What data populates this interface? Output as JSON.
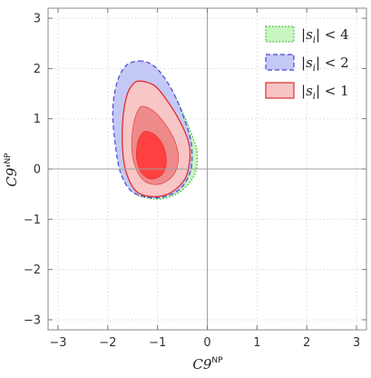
{
  "chart_data": {
    "type": "contour",
    "xlabel": "C9",
    "xlabel_sup": "NP",
    "ylabel": "C9'",
    "ylabel_sup": "NP",
    "xlim": [
      -3.2,
      3.2
    ],
    "ylim": [
      -3.2,
      3.2
    ],
    "xticks": [
      -3,
      -2,
      -1,
      0,
      1,
      2,
      3
    ],
    "yticks": [
      -3,
      -2,
      -1,
      0,
      1,
      2,
      3
    ],
    "grid": "dotted",
    "zero_lines": true,
    "legend_position": "top-right",
    "regions": [
      {
        "name": "|s_i| < 4",
        "legend_var": "s",
        "legend_sub": "i",
        "legend_rel": "< 4",
        "fill": "#c8f5c0",
        "stroke": "#3cb43c",
        "dash": "dotted",
        "outer": [
          [
            -1.35,
            2.05
          ],
          [
            -1.05,
            1.95
          ],
          [
            -0.8,
            1.7
          ],
          [
            -0.55,
            1.25
          ],
          [
            -0.28,
            0.6
          ],
          [
            -0.2,
            0.3
          ],
          [
            -0.25,
            -0.1
          ],
          [
            -0.5,
            -0.42
          ],
          [
            -0.85,
            -0.58
          ],
          [
            -1.2,
            -0.58
          ],
          [
            -1.5,
            -0.45
          ],
          [
            -1.72,
            -0.05
          ],
          [
            -1.82,
            0.5
          ],
          [
            -1.86,
            1.15
          ],
          [
            -1.78,
            1.7
          ],
          [
            -1.62,
            2.0
          ]
        ]
      },
      {
        "name": "|s_i| < 2",
        "legend_var": "s",
        "legend_sub": "i",
        "legend_rel": "< 2",
        "fill": "#c4c8f4",
        "stroke": "#4848d8",
        "dash": "dashed",
        "outer": [
          [
            -1.37,
            2.15
          ],
          [
            -1.1,
            2.07
          ],
          [
            -0.85,
            1.8
          ],
          [
            -0.6,
            1.35
          ],
          [
            -0.38,
            0.75
          ],
          [
            -0.31,
            0.4
          ],
          [
            -0.34,
            -0.05
          ],
          [
            -0.55,
            -0.4
          ],
          [
            -0.9,
            -0.56
          ],
          [
            -1.25,
            -0.55
          ],
          [
            -1.55,
            -0.42
          ],
          [
            -1.75,
            -0.05
          ],
          [
            -1.85,
            0.5
          ],
          [
            -1.9,
            1.15
          ],
          [
            -1.82,
            1.7
          ],
          [
            -1.64,
            2.05
          ]
        ]
      },
      {
        "name": "|s_i| < 1",
        "legend_var": "s",
        "legend_sub": "i",
        "legend_rel": "< 1",
        "fill": "#f6c4c4",
        "stroke": "#e03030",
        "dash": "solid",
        "bands": [
          {
            "fill": "#f8c6c6",
            "points": [
              [
                -1.35,
                1.75
              ],
              [
                -1.05,
                1.65
              ],
              [
                -0.8,
                1.35
              ],
              [
                -0.55,
                0.95
              ],
              [
                -0.38,
                0.55
              ],
              [
                -0.35,
                0.2
              ],
              [
                -0.45,
                -0.2
              ],
              [
                -0.75,
                -0.48
              ],
              [
                -1.1,
                -0.55
              ],
              [
                -1.42,
                -0.45
              ],
              [
                -1.62,
                -0.1
              ],
              [
                -1.7,
                0.35
              ],
              [
                -1.7,
                0.95
              ],
              [
                -1.62,
                1.45
              ],
              [
                -1.5,
                1.68
              ]
            ]
          },
          {
            "fill": "#ee8a8a",
            "points": [
              [
                -1.3,
                1.25
              ],
              [
                -1.08,
                1.15
              ],
              [
                -0.85,
                0.9
              ],
              [
                -0.65,
                0.55
              ],
              [
                -0.58,
                0.2
              ],
              [
                -0.68,
                -0.12
              ],
              [
                -0.95,
                -0.3
              ],
              [
                -1.25,
                -0.25
              ],
              [
                -1.45,
                0.05
              ],
              [
                -1.52,
                0.45
              ],
              [
                -1.48,
                0.9
              ],
              [
                -1.4,
                1.15
              ]
            ]
          },
          {
            "fill": "#ff4040",
            "points": [
              [
                -1.22,
                0.75
              ],
              [
                -1.05,
                0.68
              ],
              [
                -0.88,
                0.45
              ],
              [
                -0.82,
                0.15
              ],
              [
                -0.9,
                -0.1
              ],
              [
                -1.12,
                -0.2
              ],
              [
                -1.32,
                -0.08
              ],
              [
                -1.42,
                0.2
              ],
              [
                -1.4,
                0.52
              ],
              [
                -1.32,
                0.7
              ]
            ]
          }
        ]
      }
    ]
  }
}
